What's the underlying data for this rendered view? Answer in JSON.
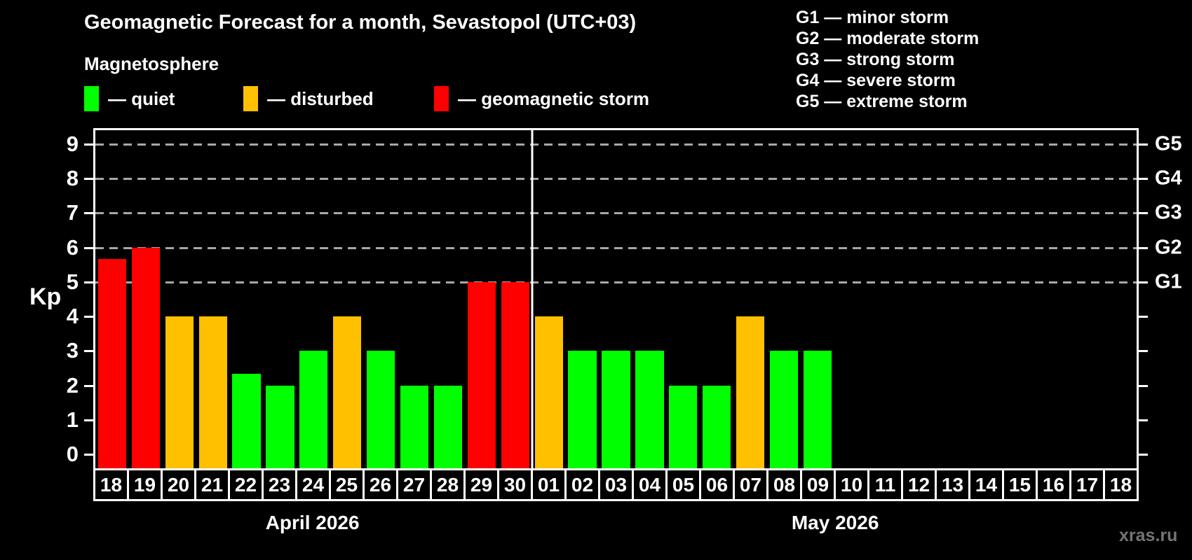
{
  "header": {
    "title": "Geomagnetic Forecast for a month, Sevastopol (UTC+03)",
    "subtitle": "Magnetosphere"
  },
  "legend": {
    "items": [
      {
        "key": "quiet",
        "label": "— quiet",
        "color": "#00ff00"
      },
      {
        "key": "disturbed",
        "label": "— disturbed",
        "color": "#ffc000"
      },
      {
        "key": "storm",
        "label": "— geomagnetic storm",
        "color": "#ff0000"
      }
    ]
  },
  "g_legend": {
    "items": [
      "G1 — minor storm",
      "G2 — moderate storm",
      "G3 — strong storm",
      "G4 — severe storm",
      "G5 — extreme storm"
    ]
  },
  "watermark": "xras.ru",
  "chart_data": {
    "type": "bar",
    "ylabel": "Kp",
    "ylim": [
      0,
      9
    ],
    "y_ticks": [
      0,
      1,
      2,
      3,
      4,
      5,
      6,
      7,
      8,
      9
    ],
    "right_axis_ticks": [
      {
        "level": 5,
        "label": "G1"
      },
      {
        "level": 6,
        "label": "G2"
      },
      {
        "level": 7,
        "label": "G3"
      },
      {
        "level": 8,
        "label": "G4"
      },
      {
        "level": 9,
        "label": "G5"
      }
    ],
    "gridline_levels": [
      5,
      6,
      7,
      8,
      9
    ],
    "grid": true,
    "legend_position": "top-left",
    "state_colors": {
      "quiet": "#00ff00",
      "disturbed": "#ffc000",
      "storm": "#ff0000"
    },
    "months": [
      {
        "label": "April 2026",
        "days": 13
      },
      {
        "label": "May 2026",
        "days": 18
      }
    ],
    "points": [
      {
        "day": "18",
        "kp": 5.67,
        "state": "storm"
      },
      {
        "day": "19",
        "kp": 6,
        "state": "storm"
      },
      {
        "day": "20",
        "kp": 4,
        "state": "disturbed"
      },
      {
        "day": "21",
        "kp": 4,
        "state": "disturbed"
      },
      {
        "day": "22",
        "kp": 2.33,
        "state": "quiet"
      },
      {
        "day": "23",
        "kp": 2,
        "state": "quiet"
      },
      {
        "day": "24",
        "kp": 3,
        "state": "quiet"
      },
      {
        "day": "25",
        "kp": 4,
        "state": "disturbed"
      },
      {
        "day": "26",
        "kp": 3,
        "state": "quiet"
      },
      {
        "day": "27",
        "kp": 2,
        "state": "quiet"
      },
      {
        "day": "28",
        "kp": 2,
        "state": "quiet"
      },
      {
        "day": "29",
        "kp": 5,
        "state": "storm"
      },
      {
        "day": "30",
        "kp": 5,
        "state": "storm"
      },
      {
        "day": "01",
        "kp": 4,
        "state": "disturbed"
      },
      {
        "day": "02",
        "kp": 3,
        "state": "quiet"
      },
      {
        "day": "03",
        "kp": 3,
        "state": "quiet"
      },
      {
        "day": "04",
        "kp": 3,
        "state": "quiet"
      },
      {
        "day": "05",
        "kp": 2,
        "state": "quiet"
      },
      {
        "day": "06",
        "kp": 2,
        "state": "quiet"
      },
      {
        "day": "07",
        "kp": 4,
        "state": "disturbed"
      },
      {
        "day": "08",
        "kp": 3,
        "state": "quiet"
      },
      {
        "day": "09",
        "kp": 3,
        "state": "quiet"
      },
      {
        "day": "10",
        "kp": null,
        "state": null
      },
      {
        "day": "11",
        "kp": null,
        "state": null
      },
      {
        "day": "12",
        "kp": null,
        "state": null
      },
      {
        "day": "13",
        "kp": null,
        "state": null
      },
      {
        "day": "14",
        "kp": null,
        "state": null
      },
      {
        "day": "15",
        "kp": null,
        "state": null
      },
      {
        "day": "16",
        "kp": null,
        "state": null
      },
      {
        "day": "17",
        "kp": null,
        "state": null
      },
      {
        "day": "18",
        "kp": null,
        "state": null
      }
    ]
  }
}
